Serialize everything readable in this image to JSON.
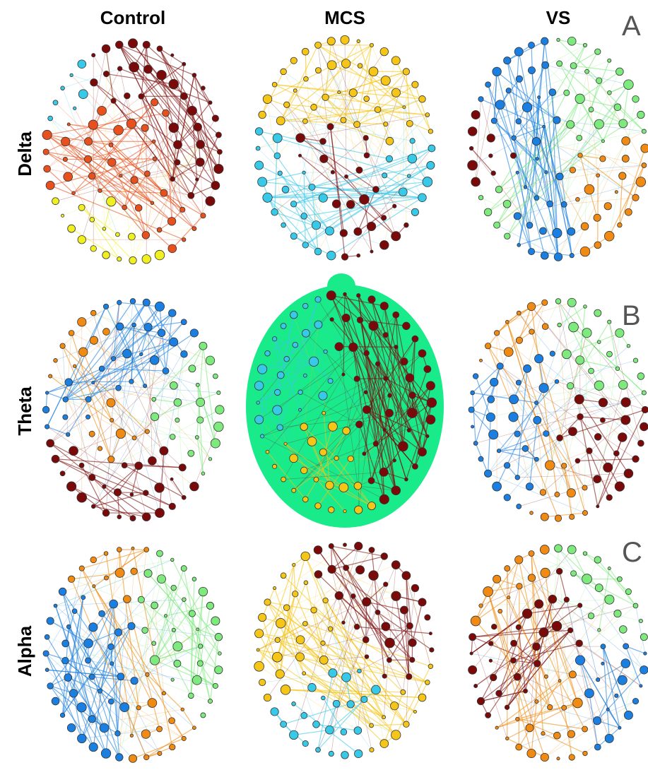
{
  "columns": [
    "Control",
    "MCS",
    "VS"
  ],
  "rows": [
    "Delta",
    "Theta",
    "Alpha"
  ],
  "panels": [
    "A",
    "B",
    "C"
  ]
}
